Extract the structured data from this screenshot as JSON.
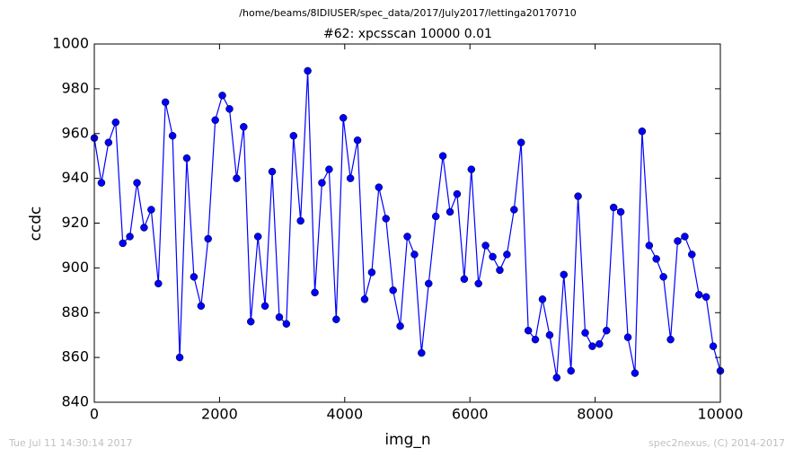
{
  "chart_data": {
    "type": "line",
    "suptitle": "/home/beams/8IDIUSER/spec_data/2017/July2017/lettinga20170710",
    "title": "#62: xpcsscan 10000 0.01",
    "xlabel": "img_n",
    "ylabel": "ccdc",
    "footer_left": "Tue Jul 11 14:30:14 2017",
    "footer_right": "spec2nexus, (C) 2014-2017",
    "color": "#0000ff",
    "x": [
      0,
      114,
      227,
      341,
      455,
      568,
      682,
      795,
      909,
      1023,
      1136,
      1250,
      1364,
      1477,
      1591,
      1705,
      1818,
      1932,
      2045,
      2159,
      2273,
      2386,
      2500,
      2614,
      2727,
      2841,
      2955,
      3068,
      3182,
      3295,
      3409,
      3523,
      3636,
      3750,
      3864,
      3977,
      4091,
      4205,
      4318,
      4432,
      4545,
      4659,
      4773,
      4886,
      5000,
      5114,
      5227,
      5341,
      5455,
      5568,
      5682,
      5795,
      5909,
      6023,
      6136,
      6250,
      6364,
      6477,
      6591,
      6705,
      6818,
      6932,
      7045,
      7159,
      7273,
      7386,
      7500,
      7614,
      7727,
      7841,
      7955,
      8068,
      8182,
      8295,
      8409,
      8523,
      8636,
      8750,
      8864,
      8977,
      9091,
      9205,
      9318,
      9432,
      9545,
      9659,
      9773,
      9886,
      10000
    ],
    "values": [
      958,
      938,
      956,
      965,
      911,
      914,
      938,
      918,
      926,
      893,
      974,
      959,
      860,
      949,
      896,
      883,
      913,
      966,
      977,
      971,
      940,
      963,
      876,
      914,
      883,
      943,
      878,
      875,
      959,
      921,
      988,
      889,
      938,
      944,
      877,
      967,
      940,
      957,
      886,
      898,
      936,
      922,
      890,
      874,
      914,
      906,
      862,
      893,
      923,
      950,
      925,
      933,
      895,
      944,
      893,
      910,
      905,
      899,
      906,
      926,
      956,
      872,
      868,
      886,
      870,
      851,
      897,
      854,
      932,
      871,
      865,
      866,
      872,
      927,
      925,
      869,
      853,
      961,
      910,
      904,
      896,
      868,
      912,
      914,
      906,
      888,
      887,
      865,
      854
    ],
    "xlim": [
      0,
      10000
    ],
    "xticks": [
      0,
      2000,
      4000,
      6000,
      8000,
      10000
    ],
    "ylim": [
      840,
      1000
    ],
    "yticks": [
      840,
      860,
      880,
      900,
      920,
      940,
      960,
      980,
      1000
    ]
  }
}
